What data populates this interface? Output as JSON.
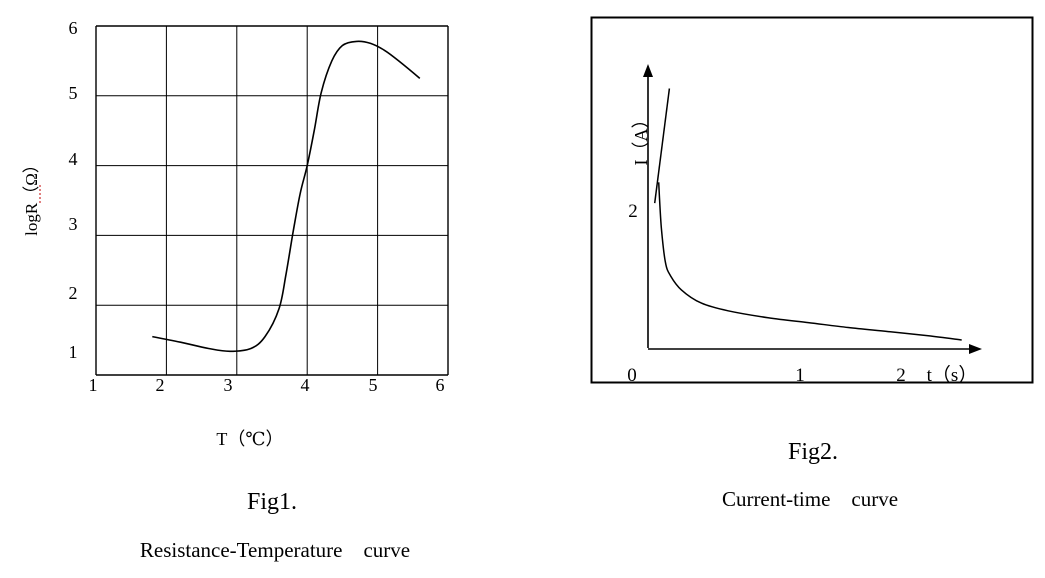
{
  "chart_data": [
    {
      "type": "line",
      "fig_label": "Fig1.",
      "caption": "Resistance-Temperature　curve",
      "xlabel": "T（℃）",
      "ylabel": "logR（Ω）",
      "x_ticks": [
        "1",
        "2",
        "3",
        "4",
        "5",
        "6"
      ],
      "y_ticks": [
        "1",
        "2",
        "3",
        "4",
        "5",
        "6"
      ],
      "xlim": [
        1,
        6
      ],
      "ylim": [
        1,
        6
      ],
      "grid": true,
      "series": [
        {
          "x": [
            1.8,
            2.2,
            2.6,
            2.9,
            3.2,
            3.4,
            3.6,
            3.7,
            3.8,
            3.9,
            4.0,
            4.1,
            4.2,
            4.35,
            4.5,
            4.7,
            4.9,
            5.1,
            5.3,
            5.6
          ],
          "y": [
            1.55,
            1.47,
            1.38,
            1.34,
            1.38,
            1.55,
            1.95,
            2.45,
            3.05,
            3.6,
            4.0,
            4.5,
            5.05,
            5.5,
            5.72,
            5.78,
            5.75,
            5.65,
            5.5,
            5.25
          ]
        }
      ]
    },
    {
      "type": "line",
      "fig_label": "Fig2.",
      "caption": "Current-time　curve",
      "xlabel": "t（s）",
      "ylabel": "I（A）",
      "origin_label": "0",
      "x_ticks": [
        "1",
        "2"
      ],
      "y_ticks": [
        "2"
      ],
      "xlim": [
        0,
        2.3
      ],
      "ylim": [
        0,
        3.8
      ],
      "grid": false,
      "series": [
        {
          "x": [
            0.08,
            0.1,
            0.13,
            0.17,
            0.25,
            0.4,
            0.6,
            0.9,
            1.2,
            1.5,
            1.8,
            2.1,
            2.35
          ],
          "y": [
            2.4,
            1.75,
            1.25,
            1.05,
            0.85,
            0.66,
            0.55,
            0.45,
            0.38,
            0.31,
            0.25,
            0.19,
            0.13
          ]
        },
        {
          "x": [
            0.05,
            0.16
          ],
          "y": [
            2.1,
            3.75
          ]
        }
      ]
    }
  ]
}
